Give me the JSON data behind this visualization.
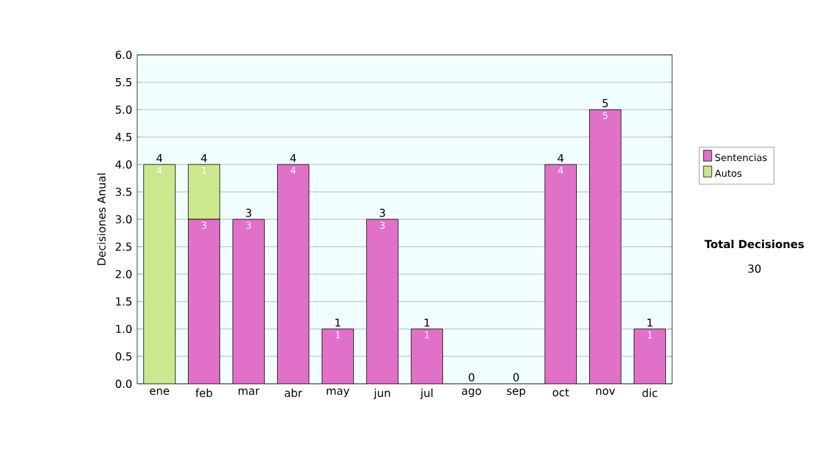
{
  "chart_data": {
    "type": "bar",
    "stacked": true,
    "ylabel": "Decisiones Anual",
    "categories": [
      "ene",
      "feb",
      "mar",
      "abr",
      "may",
      "jun",
      "jul",
      "ago",
      "sep",
      "oct",
      "nov",
      "dic"
    ],
    "series": [
      {
        "name": "Sentencias",
        "color": "#e070c8",
        "values": [
          0,
          3,
          3,
          4,
          1,
          3,
          1,
          0,
          0,
          4,
          5,
          1
        ],
        "value_labels": [
          null,
          "3",
          "3",
          "4",
          "1",
          "3",
          "1",
          null,
          null,
          "4",
          "5",
          "1"
        ]
      },
      {
        "name": "Autos",
        "color": "#cce88c",
        "values": [
          4,
          1,
          0,
          0,
          0,
          0,
          0,
          0,
          0,
          0,
          0,
          0
        ],
        "value_labels": [
          "4",
          "1",
          null,
          null,
          null,
          null,
          null,
          null,
          null,
          null,
          null,
          null
        ]
      }
    ],
    "totals": [
      "4",
      "4",
      "3",
      "4",
      "1",
      "3",
      "1",
      "0",
      "0",
      "4",
      "5",
      "1"
    ],
    "ylim": [
      0,
      6
    ],
    "yticks": [
      {
        "value": 0,
        "label": "0.0"
      },
      {
        "value": 0.5,
        "label": "0.5"
      },
      {
        "value": 1,
        "label": "1.0"
      },
      {
        "value": 1.5,
        "label": "1.5"
      },
      {
        "value": 2,
        "label": "2.0"
      },
      {
        "value": 2.5,
        "label": "2.5"
      },
      {
        "value": 3,
        "label": "3.0"
      },
      {
        "value": 3.5,
        "label": "3.5"
      },
      {
        "value": 4,
        "label": "4.0"
      },
      {
        "value": 4.5,
        "label": "4.5"
      },
      {
        "value": 5,
        "label": "5.0"
      },
      {
        "value": 5.5,
        "label": "5.5"
      },
      {
        "value": 6,
        "label": "6.0"
      }
    ],
    "grid": "y",
    "legend": "right",
    "annotations": [
      "Total Decisiones",
      "30"
    ]
  }
}
